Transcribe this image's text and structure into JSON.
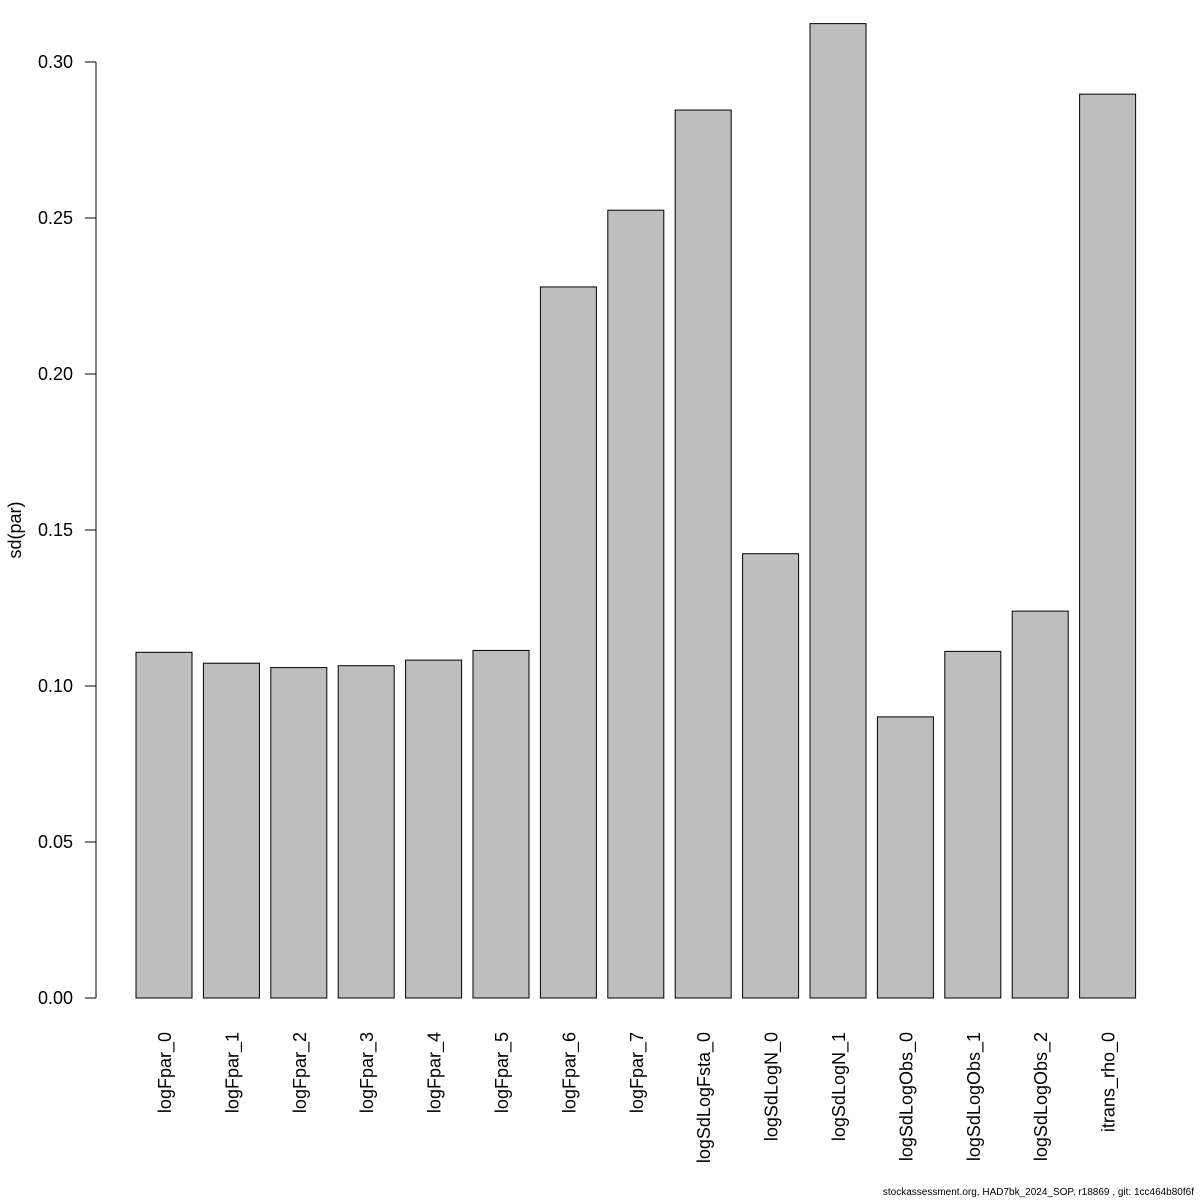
{
  "chart_data": {
    "type": "bar",
    "title": "",
    "xlabel": "",
    "ylabel": "sd(par)",
    "ylim": [
      0,
      0.31
    ],
    "yticks": [
      "0.00",
      "0.05",
      "0.10",
      "0.15",
      "0.20",
      "0.25",
      "0.30"
    ],
    "categories": [
      "logFpar_0",
      "logFpar_1",
      "logFpar_2",
      "logFpar_3",
      "logFpar_4",
      "logFpar_5",
      "logFpar_6",
      "logFpar_7",
      "logSdLogFsta_0",
      "logSdLogN_0",
      "logSdLogN_1",
      "logSdLogObs_0",
      "logSdLogObs_1",
      "logSdLogObs_2",
      "itrans_rho_0"
    ],
    "values": [
      0.1108,
      0.1073,
      0.1059,
      0.1065,
      0.1083,
      0.1114,
      0.2279,
      0.2525,
      0.2846,
      0.1424,
      0.3123,
      0.0901,
      0.1111,
      0.124,
      0.2897
    ],
    "bar_color": "#bebebe",
    "bar_edge_color": "#000000",
    "grid": false
  },
  "footer": "stockassessment.org, HAD7bk_2024_SOP, r18869 , git: 1cc464b80f6f"
}
